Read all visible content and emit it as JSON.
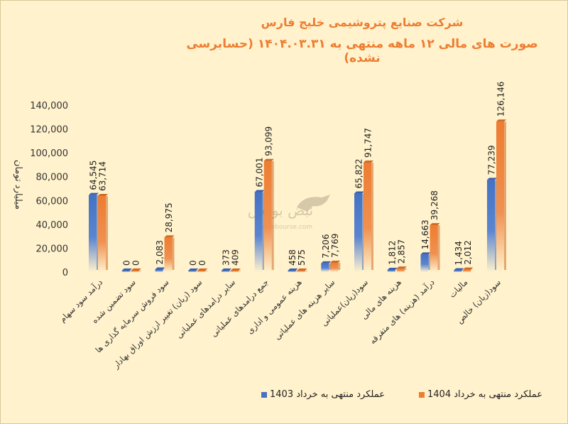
{
  "title": "شرکت صنایع پتروشیمی خلیج فارس",
  "subtitle": "صورت های مالی ۱۲ ماهه منتهی به ۱۴۰۴.۰۳.۳۱ (حسابرسی نشده)",
  "watermark": {
    "brand": "نبض بورس",
    "site": "nabzebourse.com"
  },
  "colors": {
    "series1": "#4472c4",
    "series2": "#ed7d31",
    "title": "#ed7d31"
  },
  "chart_data": {
    "type": "bar",
    "title": "شرکت صنایع پتروشیمی خلیج فارس",
    "ylabel": "میلیارد تومان",
    "xlabel": "",
    "ylim": [
      0,
      140000
    ],
    "yticks": [
      "0",
      "20,000",
      "40,000",
      "60,000",
      "80,000",
      "100,000",
      "120,000",
      "140,000"
    ],
    "grid": false,
    "legend_position": "bottom",
    "categories": [
      "درآمد سود سهام",
      "سود تضمین شده",
      "سود فروش سرمایه گذاری ها",
      "سود (زیان) تغییر ارزش اوراق بهادار",
      "سایر درامدهای عملیاتی",
      "جمع درامدهای عملیاتی",
      "هزینه عمومی و اداری",
      "سایر هزینه های عملیاتی",
      "سود(زیان)عملیاتی",
      "هزینه های مالی",
      "درآمد (هزینه) های متفرقه",
      "مالیات",
      "سود(زیان) خالص"
    ],
    "series": [
      {
        "name": "عملکرد منتهی به خرداد 1403",
        "values": [
          64545,
          0,
          2083,
          0,
          373,
          67001,
          458,
          7206,
          65822,
          1812,
          14663,
          1434,
          77239
        ],
        "labels": [
          "64,545",
          "0",
          "2,083",
          "0",
          "373",
          "67,001",
          "458",
          "7,206",
          "65,822",
          "1,812",
          "14,663",
          "1,434",
          "77,239"
        ]
      },
      {
        "name": "عملکرد منتهی به خرداد 1404",
        "values": [
          63714,
          0,
          28975,
          0,
          409,
          93099,
          575,
          7769,
          91747,
          2857,
          39268,
          2012,
          126146
        ],
        "labels": [
          "63,714",
          "0",
          "28,975",
          "0",
          "409",
          "93,099",
          "575",
          "7,769",
          "91,747",
          "2,857",
          "39,268",
          "2,012",
          "126,146"
        ]
      }
    ]
  }
}
